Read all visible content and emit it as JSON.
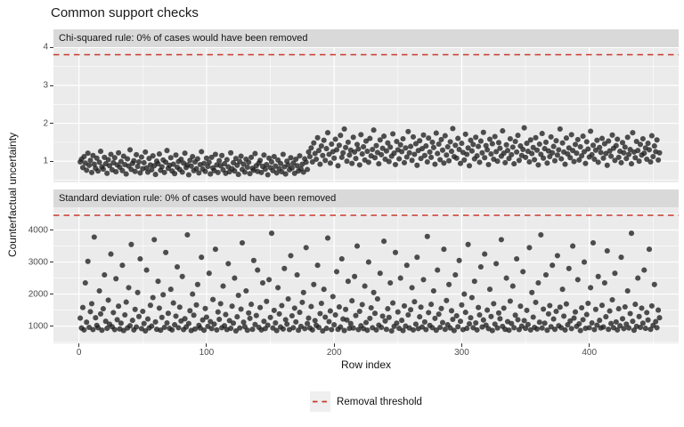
{
  "title": "Common support checks",
  "colors": {
    "panel_bg": "#ebebeb",
    "strip_bg": "#d9d9d9",
    "grid": "#ffffff",
    "point": "#1f1f1f",
    "threshold": "#c9392c",
    "tick_text": "#4d4d4d",
    "legend_key_bg": "#efefef"
  },
  "chart_data": {
    "type": "scatter",
    "title": "Common support checks",
    "xlabel": "Row index",
    "ylabel": "Counterfactual uncertainty",
    "legend": {
      "label": "Removal threshold",
      "position": "bottom",
      "line_style": "dashed-red"
    },
    "x_rule": "row index = array position + 1",
    "xlim": [
      -20,
      470
    ],
    "xticks": [
      0,
      100,
      200,
      300,
      400
    ],
    "xticks_minor": [
      50,
      150,
      250,
      350,
      450
    ],
    "grid": true,
    "facets": [
      {
        "strip": "Chi-squared rule: 0% of cases would have been removed",
        "threshold": 3.81,
        "ylim": [
          0.44,
          4.01
        ],
        "yticks": [
          1,
          2,
          3,
          4
        ],
        "yticks_minor": [
          0.5,
          1.5,
          2.5,
          3.5
        ],
        "y": [
          0.98,
          1.05,
          0.83,
          1.12,
          0.95,
          0.76,
          1.21,
          0.89,
          1.02,
          0.7,
          1.15,
          0.92,
          0.81,
          1.08,
          0.74,
          0.97,
          1.26,
          0.85,
          0.79,
          1.1,
          0.93,
          0.68,
          1.04,
          0.88,
          1.18,
          0.77,
          0.96,
          1.09,
          0.72,
          0.9,
          1.22,
          0.84,
          0.99,
          0.75,
          1.13,
          0.91,
          0.66,
          1.06,
          0.87,
          1.3,
          0.78,
          0.94,
          1.01,
          0.73,
          1.17,
          0.86,
          0.98,
          0.69,
          1.11,
          0.8,
          0.96,
          1.24,
          0.82,
          0.71,
          1.07,
          0.9,
          0.77,
          1.14,
          0.88,
          0.65,
          1.0,
          0.93,
          1.19,
          0.76,
          0.85,
          1.03,
          0.7,
          0.97,
          1.28,
          0.81,
          0.89,
          1.09,
          0.74,
          0.92,
          0.67,
          1.16,
          0.84,
          0.99,
          0.78,
          1.05,
          0.71,
          0.95,
          1.21,
          0.83,
          0.9,
          0.64,
          1.02,
          0.87,
          1.12,
          0.75,
          0.98,
          0.8,
          1.06,
          0.69,
          0.91,
          1.25,
          0.79,
          0.94,
          0.73,
          1.08,
          0.86,
          0.97,
          0.66,
          1.1,
          0.82,
          0.75,
          1.18,
          0.9,
          0.7,
          1.01,
          0.88,
          1.15,
          0.77,
          0.93,
          0.68,
          1.04,
          0.85,
          0.72,
          1.22,
          0.8,
          0.96,
          0.74,
          1.07,
          0.89,
          0.65,
          0.99,
          1.13,
          0.78,
          0.92,
          0.71,
          1.05,
          0.84,
          0.97,
          0.67,
          1.1,
          0.81,
          0.76,
          1.2,
          0.88,
          0.73,
          0.95,
          1.02,
          0.7,
          0.86,
          1.16,
          0.79,
          0.91,
          0.64,
          1.08,
          0.83,
          0.98,
          0.75,
          1.12,
          0.87,
          0.69,
          1.03,
          0.8,
          0.94,
          0.72,
          1.18,
          0.85,
          0.66,
          1.0,
          0.9,
          0.77,
          1.09,
          0.82,
          0.95,
          0.68,
          1.05,
          0.88,
          0.74,
          1.14,
          0.8,
          0.92,
          0.71,
          1.06,
          0.97,
          0.78,
          1.24,
          1.12,
          1.35,
          0.98,
          1.48,
          1.2,
          1.05,
          1.62,
          1.28,
          0.92,
          1.4,
          1.15,
          1.55,
          1.02,
          1.33,
          1.75,
          1.18,
          0.95,
          1.45,
          1.25,
          1.08,
          1.58,
          1.3,
          0.88,
          1.42,
          1.68,
          1.1,
          1.22,
          1.85,
          1.36,
          1.0,
          1.5,
          1.16,
          1.29,
          0.94,
          1.63,
          1.24,
          1.07,
          1.44,
          1.32,
          0.9,
          1.7,
          1.19,
          1.38,
          1.03,
          1.53,
          1.26,
          0.97,
          1.6,
          1.14,
          1.31,
          1.82,
          1.09,
          1.41,
          1.23,
          0.93,
          1.56,
          1.17,
          1.34,
          1.66,
          1.05,
          1.27,
          1.48,
          0.99,
          1.37,
          1.13,
          1.72,
          1.21,
          0.91,
          1.52,
          1.3,
          1.06,
          1.43,
          1.25,
          1.59,
          0.96,
          1.35,
          1.11,
          1.78,
          1.22,
          1.39,
          1.02,
          1.64,
          1.18,
          1.46,
          0.89,
          1.28,
          1.54,
          1.07,
          1.33,
          1.69,
          1.15,
          1.4,
          0.98,
          1.61,
          1.24,
          1.1,
          1.5,
          1.36,
          0.92,
          1.74,
          1.2,
          1.45,
          1.04,
          1.57,
          1.29,
          0.95,
          1.67,
          1.16,
          1.38,
          1.01,
          1.51,
          1.26,
          1.86,
          1.12,
          1.42,
          1.08,
          1.6,
          1.31,
          0.94,
          1.47,
          1.23,
          1.03,
          1.71,
          1.18,
          1.35,
          0.88,
          1.55,
          1.27,
          1.44,
          1.06,
          1.63,
          1.14,
          1.39,
          0.97,
          1.53,
          1.22,
          1.76,
          1.09,
          1.41,
          1.3,
          0.91,
          1.58,
          1.19,
          1.46,
          1.05,
          1.65,
          1.25,
          1.0,
          1.49,
          1.34,
          1.13,
          1.8,
          1.21,
          0.96,
          1.43,
          1.28,
          1.07,
          1.59,
          1.17,
          1.37,
          0.93,
          1.52,
          1.24,
          1.68,
          1.02,
          1.4,
          1.15,
          1.31,
          1.88,
          1.1,
          1.47,
          1.26,
          0.98,
          1.56,
          1.2,
          1.36,
          1.04,
          1.62,
          1.29,
          0.9,
          1.45,
          1.18,
          1.73,
          1.08,
          1.33,
          1.5,
          0.95,
          1.27,
          1.12,
          1.64,
          1.22,
          1.39,
          1.01,
          1.54,
          1.16,
          1.3,
          1.85,
          1.06,
          1.48,
          1.24,
          0.92,
          1.61,
          1.19,
          1.35,
          1.09,
          1.7,
          1.28,
          0.99,
          1.44,
          1.21,
          1.57,
          1.03,
          1.38,
          1.14,
          1.66,
          1.25,
          0.94,
          1.51,
          1.32,
          1.11,
          1.79,
          1.17,
          1.42,
          1.05,
          1.29,
          1.55,
          0.97,
          1.36,
          1.23,
          1.6,
          1.08,
          1.46,
          1.2,
          0.89,
          1.53,
          1.27,
          1.13,
          1.69,
          1.34,
          1.02,
          1.41,
          1.58,
          1.1,
          1.26,
          0.96,
          1.49,
          1.22,
          1.37,
          1.07,
          1.63,
          1.18,
          1.31,
          0.93,
          1.75,
          1.24,
          1.09,
          1.52,
          1.28,
          1.0,
          1.44,
          1.16,
          1.59,
          1.21,
          1.35,
          1.05,
          1.47,
          1.3,
          0.98,
          1.67,
          1.12,
          1.4,
          1.25,
          1.56,
          1.03,
          1.22
        ]
      },
      {
        "strip": "Standard deviation rule: 0% of cases would have been removed",
        "threshold": 4460,
        "ylim": [
          460,
          4710
        ],
        "yticks": [
          1000,
          2000,
          3000,
          4000
        ],
        "yticks_minor": [
          500,
          1500,
          2500,
          3500,
          4500
        ],
        "y": [
          1250,
          940,
          1580,
          880,
          2350,
          1120,
          3020,
          960,
          1450,
          1700,
          890,
          3780,
          1260,
          1020,
          950,
          2100,
          1380,
          870,
          1540,
          2600,
          1150,
          930,
          1810,
          1060,
          3250,
          980,
          1420,
          890,
          2480,
          1200,
          1620,
          910,
          1090,
          2900,
          860,
          1350,
          1750,
          940,
          2200,
          1010,
          3550,
          1180,
          880,
          1520,
          970,
          2050,
          1300,
          3100,
          920,
          1460,
          1080,
          850,
          2750,
          1220,
          940,
          1650,
          1000,
          1890,
          3700,
          1130,
          900,
          2400,
          1560,
          870,
          1270,
          1980,
          960,
          3300,
          1100,
          1400,
          930,
          2150,
          880,
          1720,
          1040,
          1310,
          2850,
          950,
          1590,
          1160,
          2550,
          890,
          1230,
          970,
          3850,
          1080,
          1480,
          860,
          2000,
          1340,
          910,
          1660,
          2300,
          1020,
          940,
          3150,
          1190,
          870,
          1550,
          1280,
          990,
          2650,
          1140,
          920,
          1830,
          1060,
          3400,
          880,
          1440,
          1210,
          1700,
          950,
          2250,
          1010,
          1360,
          890,
          2950,
          1170,
          930,
          1620,
          1090,
          2500,
          850,
          1290,
          1960,
          940,
          1530,
          3600,
          1120,
          980,
          2100,
          870,
          1410,
          1240,
          1680,
          900,
          3050,
          1050,
          1330,
          2750,
          960,
          1580,
          880,
          2350,
          1150,
          920,
          1770,
          1030,
          2450,
          1270,
          3900,
          940,
          1490,
          1100,
          860,
          2200,
          1380,
          970,
          1640,
          910,
          2800,
          1200,
          1060,
          1850,
          890,
          3200,
          1320,
          950,
          1560,
          1130,
          2600,
          870,
          1430,
          990,
          1740,
          2050,
          920,
          3450,
          1080,
          1250,
          940,
          1610,
          880,
          2300,
          1170,
          1020,
          2900,
          960,
          1390,
          1710,
          850,
          2150,
          1280,
          930,
          3750,
          1140,
          1470,
          890,
          1920,
          1040,
          1350,
          2700,
          900,
          1600,
          970,
          3100,
          1220,
          860,
          1520,
          1190,
          2400,
          930,
          1080,
          1790,
          940,
          2550,
          1330,
          3500,
          890,
          1460,
          1010,
          1670,
          920,
          2250,
          1110,
          870,
          3000,
          1240,
          1570,
          950,
          2050,
          1400,
          880,
          1850,
          1030,
          2650,
          960,
          1310,
          3650,
          1160,
          900,
          1540,
          1270,
          2350,
          850,
          1720,
          990,
          3300,
          1090,
          1440,
          930,
          2500,
          1180,
          860,
          1630,
          1000,
          2900,
          1350,
          940,
          1510,
          2200,
          880,
          1760,
          1060,
          3150,
          920,
          1290,
          1590,
          970,
          2450,
          1130,
          890,
          3800,
          1420,
          1020,
          1680,
          950,
          2100,
          1240,
          870,
          2750,
          1370,
          960,
          1550,
          1110,
          3400,
          900,
          1800,
          1040,
          2300,
          940,
          1480,
          1210,
          860,
          2600,
          1320,
          980,
          3050,
          1150,
          1660,
          890,
          2000,
          1430,
          930,
          3550,
          1070,
          1260,
          1890,
          950,
          2400,
          1100,
          880,
          1580,
          1350,
          2850,
          970,
          1190,
          3250,
          1030,
          1500,
          920,
          2150,
          1300,
          860,
          1700,
          1060,
          2950,
          940,
          1410,
          1230,
          3700,
          990,
          1560,
          900,
          2500,
          1140,
          870,
          1780,
          1080,
          2250,
          950,
          1340,
          3100,
          1200,
          890,
          1620,
          1000,
          2700,
          1170,
          930,
          1490,
          1050,
          3450,
          880,
          2050,
          1280,
          960,
          1740,
          910,
          2350,
          1120,
          3850,
          940,
          1530,
          1090,
          2600,
          870,
          1380,
          1640,
          980,
          2900,
          1220,
          900,
          1460,
          3200,
          1010,
          1590,
          950,
          2150,
          1310,
          880,
          1690,
          1040,
          2800,
          1160,
          920,
          3500,
          1250,
          1440,
          990,
          2450,
          1070,
          860,
          1570,
          1200,
          3000,
          930,
          1360,
          1710,
          950,
          2200,
          1100,
          3600,
          890,
          1520,
          1030,
          2550,
          1180,
          940,
          1650,
          970,
          2350,
          1290,
          3350,
          900,
          1470,
          1080,
          1820,
          950,
          2650,
          1130,
          880,
          1540,
          1010,
          3150,
          1230,
          920,
          1600,
          1060,
          2100,
          940,
          1390,
          3900,
          1150,
          870,
          1680,
          990,
          2500,
          1300,
          960,
          1560,
          1090,
          2750,
          930,
          1420,
          1190,
          3400,
          900,
          1630,
          1020,
          2300,
          1140,
          950,
          1500,
          1260
        ]
      }
    ]
  }
}
